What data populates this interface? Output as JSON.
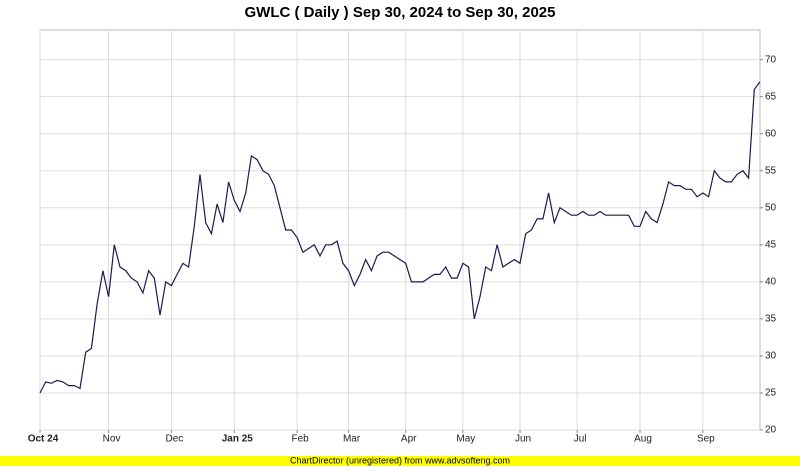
{
  "chart_data": {
    "type": "line",
    "title": "GWLC ( Daily ) Sep 30, 2024 to Sep 30, 2025",
    "footer": "ChartDirector (unregistered) from www.advsofteng.com",
    "color": "#1a1a4e",
    "grid": true,
    "values": [
      25,
      26.5,
      26.3,
      26.7,
      26.5,
      26,
      26,
      25.6,
      30.5,
      31,
      37,
      41.5,
      38,
      45,
      42,
      41.5,
      40.5,
      40,
      38.5,
      41.5,
      40.5,
      35.5,
      40,
      39.5,
      41,
      42.5,
      42,
      47.5,
      54.5,
      48,
      46.5,
      50.5,
      48,
      53.5,
      51,
      49.5,
      52,
      57,
      56.5,
      55,
      54.5,
      53,
      50,
      47,
      47,
      46,
      44,
      44.5,
      45,
      43.5,
      45,
      45,
      45.5,
      42.5,
      41.5,
      39.5,
      41,
      43,
      41.5,
      43.5,
      44,
      44,
      43.5,
      43,
      42.5,
      40,
      40,
      40,
      40.5,
      41,
      41,
      42,
      40.5,
      40.5,
      42.5,
      42,
      35,
      38,
      42,
      41.5,
      45,
      42,
      42.5,
      43,
      42.5,
      46.5,
      47,
      48.5,
      48.5,
      52,
      48,
      50,
      49.5,
      49,
      49,
      49.5,
      49,
      49,
      49.5,
      49,
      49,
      49,
      49,
      49,
      47.5,
      47.5,
      49.5,
      48.5,
      48,
      50.5,
      53.5,
      53,
      53,
      52.5,
      52.5,
      51.5,
      52,
      51.5,
      55,
      54,
      53.5,
      53.5,
      54.5,
      55,
      54,
      66,
      67
    ],
    "xlim": [
      0,
      126
    ],
    "xticks": [
      {
        "value": 0,
        "label": "Oct 24"
      },
      {
        "value": 12,
        "label": "Nov"
      },
      {
        "value": 23,
        "label": "Dec"
      },
      {
        "value": 34,
        "label": "Jan 25"
      },
      {
        "value": 45,
        "label": "Feb"
      },
      {
        "value": 54,
        "label": "Mar"
      },
      {
        "value": 64,
        "label": "Apr"
      },
      {
        "value": 74,
        "label": "May"
      },
      {
        "value": 84,
        "label": "Jun"
      },
      {
        "value": 94,
        "label": "Jul"
      },
      {
        "value": 105,
        "label": "Aug"
      },
      {
        "value": 116,
        "label": "Sep"
      }
    ],
    "ylim": [
      20,
      74
    ],
    "yticks": [
      20,
      25,
      30,
      35,
      40,
      45,
      50,
      55,
      60,
      65,
      70
    ]
  }
}
